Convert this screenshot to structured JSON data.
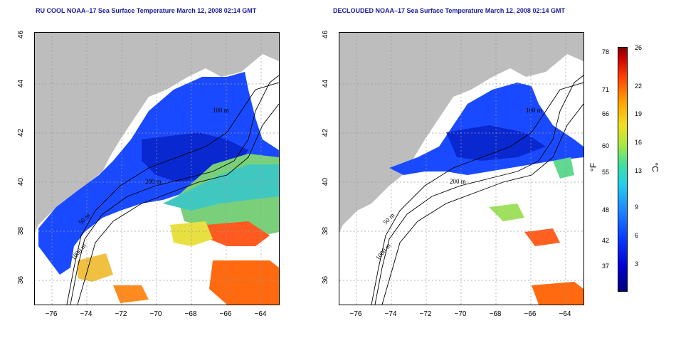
{
  "left_panel": {
    "title": "RU COOL NOAA–17 Sea Surface Temperature March 12, 2008 02:14 GMT",
    "contour_labels": [
      "100 m",
      "200 m",
      "50 m",
      "1000 m"
    ]
  },
  "right_panel": {
    "title": "DECLOUDED NOAA–17 Sea Surface Temperature March 12, 2008 02:14 GMT",
    "contour_labels": [
      "100 m",
      "200 m",
      "50 m",
      "1000 m"
    ]
  },
  "axes": {
    "x_ticks": [
      "−76",
      "−74",
      "−72",
      "−70",
      "−68",
      "−66",
      "−64"
    ],
    "y_ticks": [
      "46",
      "44",
      "42",
      "40",
      "38",
      "36"
    ]
  },
  "colorbar": {
    "fahrenheit_ticks": [
      "78",
      "71",
      "66",
      "60",
      "55",
      "48",
      "42",
      "37"
    ],
    "celsius_ticks": [
      "26",
      "22",
      "19",
      "16",
      "13",
      "9",
      "6",
      "3"
    ],
    "fahrenheit_unit": "°F",
    "celsius_unit": "°C"
  },
  "colors": {
    "land": "#bdbdbd",
    "title": "#1a1aa0",
    "cold": "#1a3cff",
    "warm": "#ff4a00"
  }
}
